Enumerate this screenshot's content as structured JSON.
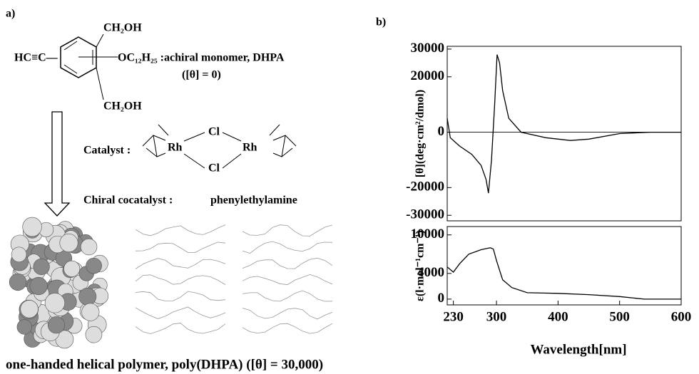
{
  "panel_a": {
    "label": "a)",
    "substituent_top": "CH₂OH",
    "substituent_left": "HC≡C—",
    "substituent_right": "OC₁₂H₂₅ :",
    "substituent_bottom": "CH₂OH",
    "monomer_name": "achiral monomer, DHPA",
    "monomer_rotation": "([θ] = 0)",
    "catalyst_label": "Catalyst :",
    "catalyst_atoms": [
      "Rh",
      "Cl",
      "Rh",
      "Cl"
    ],
    "cocatalyst_label": "Chiral cocatalyst :",
    "cocatalyst_name": "phenylethylamine",
    "caption": "one-handed helical polymer, poly(DHPA) ([θ] = 30,000)"
  },
  "panel_b_label": "b)",
  "chart_data": [
    {
      "type": "line",
      "ylabel": "[θ](deg·cm²/dmol)",
      "color": "#000000",
      "xlim": [
        220,
        600
      ],
      "ylim": [
        -32000,
        31000
      ],
      "yticks": [
        -30000,
        -20000,
        0,
        20000,
        30000
      ],
      "x": [
        220,
        225,
        240,
        260,
        275,
        283,
        287,
        292,
        297,
        301,
        305,
        310,
        320,
        340,
        380,
        420,
        450,
        500,
        550,
        600
      ],
      "values": [
        5000,
        -2000,
        -5000,
        -8000,
        -12000,
        -17000,
        -22000,
        -10000,
        10000,
        28000,
        25000,
        15000,
        5000,
        0,
        -2000,
        -3000,
        -2500,
        -500,
        0,
        0
      ]
    },
    {
      "type": "line",
      "ylabel": "ε(l·mol⁻¹cm⁻¹)",
      "xlabel": "Wavelength[nm]",
      "color": "#000000",
      "xlim": [
        220,
        600
      ],
      "ylim": [
        -900,
        11300
      ],
      "yticks": [
        0,
        4000,
        10000
      ],
      "xticks": [
        230,
        300,
        400,
        500,
        600
      ],
      "x": [
        220,
        230,
        240,
        255,
        275,
        290,
        295,
        300,
        310,
        325,
        350,
        400,
        450,
        500,
        540,
        600
      ],
      "values": [
        5000,
        4200,
        5500,
        7000,
        7700,
        8000,
        7800,
        6000,
        3000,
        1800,
        1000,
        900,
        700,
        400,
        0,
        0
      ]
    }
  ]
}
